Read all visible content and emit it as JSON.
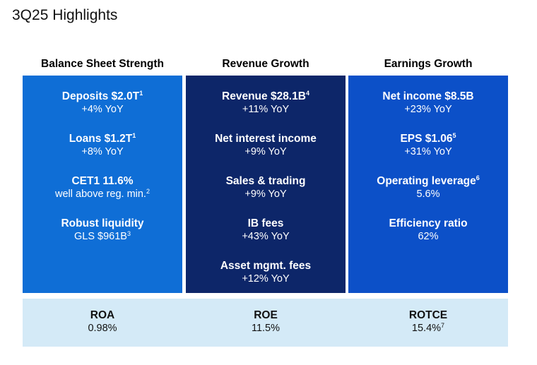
{
  "title": "3Q25 Highlights",
  "columns": [
    {
      "heading": "Balance Sheet Strength",
      "items": [
        {
          "label": "Deposits $2.0T",
          "label_sup": "1",
          "value": "+4% YoY",
          "value_sup": ""
        },
        {
          "label": "Loans $1.2T",
          "label_sup": "1",
          "value": "+8% YoY",
          "value_sup": ""
        },
        {
          "label": "CET1 11.6%",
          "label_sup": "",
          "value": "well above reg. min.",
          "value_sup": "2"
        },
        {
          "label": "Robust liquidity",
          "label_sup": "",
          "value": "GLS $961B",
          "value_sup": "3"
        }
      ]
    },
    {
      "heading": "Revenue Growth",
      "items": [
        {
          "label": "Revenue $28.1B",
          "label_sup": "4",
          "value": "+11% YoY",
          "value_sup": ""
        },
        {
          "label": "Net interest income",
          "label_sup": "",
          "value": "+9% YoY",
          "value_sup": ""
        },
        {
          "label": "Sales & trading",
          "label_sup": "",
          "value": "+9% YoY",
          "value_sup": ""
        },
        {
          "label": "IB fees",
          "label_sup": "",
          "value": "+43% YoY",
          "value_sup": ""
        },
        {
          "label": "Asset mgmt. fees",
          "label_sup": "",
          "value": "+12% YoY",
          "value_sup": ""
        }
      ]
    },
    {
      "heading": "Earnings Growth",
      "items": [
        {
          "label": "Net income $8.5B",
          "label_sup": "",
          "value": "+23% YoY",
          "value_sup": ""
        },
        {
          "label": "EPS $1.06",
          "label_sup": "5",
          "value": "+31% YoY",
          "value_sup": ""
        },
        {
          "label": "Operating leverage",
          "label_sup": "6",
          "value": "5.6%",
          "value_sup": ""
        },
        {
          "label": "Efficiency ratio",
          "label_sup": "",
          "value": "62%",
          "value_sup": ""
        }
      ]
    }
  ],
  "footer": [
    {
      "label": "ROA",
      "value": "0.98%",
      "value_sup": ""
    },
    {
      "label": "ROE",
      "value": "11.5%",
      "value_sup": ""
    },
    {
      "label": "ROTCE",
      "value": "15.4%",
      "value_sup": "7"
    }
  ],
  "colors": {
    "balance_panel": "#0f6ed6",
    "revenue_panel": "#0d2669",
    "earnings_panel": "#0c50c8",
    "footer_band": "#d4eaf7"
  }
}
